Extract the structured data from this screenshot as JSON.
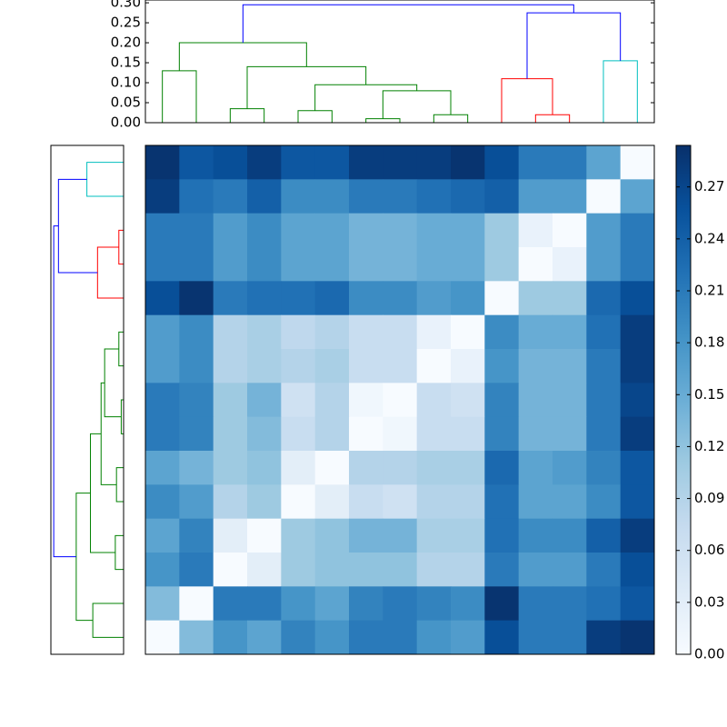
{
  "chart_data": {
    "type": "heatmap",
    "matrix": [
      [
        0.29,
        0.25,
        0.26,
        0.28,
        0.25,
        0.25,
        0.28,
        0.28,
        0.28,
        0.29,
        0.26,
        0.21,
        0.21,
        0.16,
        0.0
      ],
      [
        0.28,
        0.22,
        0.21,
        0.24,
        0.19,
        0.19,
        0.21,
        0.21,
        0.22,
        0.23,
        0.24,
        0.17,
        0.17,
        0.0,
        0.16
      ],
      [
        0.21,
        0.21,
        0.17,
        0.19,
        0.16,
        0.16,
        0.14,
        0.14,
        0.15,
        0.15,
        0.11,
        0.02,
        0.0,
        0.17,
        0.21
      ],
      [
        0.21,
        0.21,
        0.17,
        0.19,
        0.16,
        0.16,
        0.14,
        0.14,
        0.15,
        0.15,
        0.11,
        0.0,
        0.02,
        0.17,
        0.21
      ],
      [
        0.26,
        0.29,
        0.21,
        0.22,
        0.22,
        0.23,
        0.19,
        0.19,
        0.17,
        0.18,
        0.0,
        0.11,
        0.11,
        0.23,
        0.26
      ],
      [
        0.17,
        0.19,
        0.09,
        0.1,
        0.08,
        0.09,
        0.07,
        0.07,
        0.02,
        0.0,
        0.19,
        0.15,
        0.15,
        0.22,
        0.28
      ],
      [
        0.17,
        0.19,
        0.09,
        0.1,
        0.09,
        0.1,
        0.07,
        0.07,
        0.0,
        0.02,
        0.18,
        0.14,
        0.14,
        0.21,
        0.28
      ],
      [
        0.21,
        0.2,
        0.11,
        0.14,
        0.06,
        0.09,
        0.01,
        0.0,
        0.07,
        0.06,
        0.2,
        0.14,
        0.14,
        0.21,
        0.27
      ],
      [
        0.21,
        0.2,
        0.11,
        0.13,
        0.07,
        0.09,
        0.0,
        0.01,
        0.07,
        0.07,
        0.2,
        0.14,
        0.14,
        0.21,
        0.28
      ],
      [
        0.16,
        0.14,
        0.11,
        0.12,
        0.03,
        0.0,
        0.09,
        0.09,
        0.1,
        0.1,
        0.23,
        0.16,
        0.17,
        0.2,
        0.25
      ],
      [
        0.19,
        0.17,
        0.09,
        0.11,
        0.0,
        0.03,
        0.07,
        0.06,
        0.09,
        0.09,
        0.22,
        0.16,
        0.16,
        0.19,
        0.25
      ],
      [
        0.16,
        0.2,
        0.03,
        0.0,
        0.11,
        0.12,
        0.14,
        0.14,
        0.1,
        0.1,
        0.22,
        0.19,
        0.19,
        0.24,
        0.28
      ],
      [
        0.18,
        0.21,
        0.0,
        0.03,
        0.11,
        0.12,
        0.12,
        0.12,
        0.09,
        0.09,
        0.21,
        0.17,
        0.17,
        0.21,
        0.26
      ],
      [
        0.13,
        0.0,
        0.21,
        0.21,
        0.18,
        0.16,
        0.2,
        0.21,
        0.2,
        0.19,
        0.29,
        0.21,
        0.21,
        0.22,
        0.25
      ],
      [
        0.0,
        0.13,
        0.18,
        0.16,
        0.2,
        0.18,
        0.21,
        0.21,
        0.18,
        0.17,
        0.26,
        0.21,
        0.21,
        0.28,
        0.29
      ]
    ],
    "clim": [
      0,
      0.294
    ],
    "colormap": [
      "#f7fbff",
      "#deebf7",
      "#c6dbef",
      "#9ecae1",
      "#6baed6",
      "#4292c6",
      "#2171b5",
      "#08519c",
      "#08306b"
    ],
    "colorbar_ticks": [
      {
        "value": 0,
        "label": "0.00"
      },
      {
        "value": 0.03,
        "label": "0.03"
      },
      {
        "value": 0.06,
        "label": "0.06"
      },
      {
        "value": 0.09,
        "label": "0.09"
      },
      {
        "value": 0.12,
        "label": "0.12"
      },
      {
        "value": 0.15,
        "label": "0.15"
      },
      {
        "value": 0.18,
        "label": "0.18"
      },
      {
        "value": 0.21,
        "label": "0.21"
      },
      {
        "value": 0.24,
        "label": "0.24"
      },
      {
        "value": 0.27,
        "label": "0.27"
      }
    ],
    "dendrogram": {
      "ylim": [
        0,
        0.307
      ],
      "yticks": [
        {
          "value": 0,
          "label": "0.00"
        },
        {
          "value": 0.05,
          "label": "0.05"
        },
        {
          "value": 0.1,
          "label": "0.10"
        },
        {
          "value": 0.15,
          "label": "0.15"
        },
        {
          "value": 0.2,
          "label": "0.20"
        },
        {
          "value": 0.25,
          "label": "0.25"
        },
        {
          "value": 0.3,
          "label": "0.30"
        }
      ],
      "links": [
        {
          "left": 6,
          "right": 7,
          "height": 0.01,
          "color": "#008000"
        },
        {
          "left": 8,
          "right": 9,
          "height": 0.02,
          "color": "#008000"
        },
        {
          "left": 11,
          "right": 12,
          "height": 0.02,
          "color": "#ff0000"
        },
        {
          "left": 4,
          "right": 5,
          "height": 0.03,
          "color": "#008000"
        },
        {
          "left": 2,
          "right": 3,
          "height": 0.035,
          "color": "#008000"
        },
        {
          "left": 15,
          "right": 16,
          "height": 0.08,
          "color": "#008000"
        },
        {
          "left": 18,
          "right": 20,
          "height": 0.095,
          "color": "#008000"
        },
        {
          "left": 10,
          "right": 17,
          "height": 0.11,
          "color": "#ff0000"
        },
        {
          "left": 0,
          "right": 1,
          "height": 0.13,
          "color": "#008000"
        },
        {
          "left": 19,
          "right": 21,
          "height": 0.14,
          "color": "#008000"
        },
        {
          "left": 13,
          "right": 14,
          "height": 0.155,
          "color": "#00bfbf"
        },
        {
          "left": 23,
          "right": 24,
          "height": 0.2,
          "color": "#008000"
        },
        {
          "left": 22,
          "right": 25,
          "height": 0.275,
          "color": "#0000ff"
        },
        {
          "left": 26,
          "right": 27,
          "height": 0.295,
          "color": "#0000ff"
        }
      ]
    }
  }
}
